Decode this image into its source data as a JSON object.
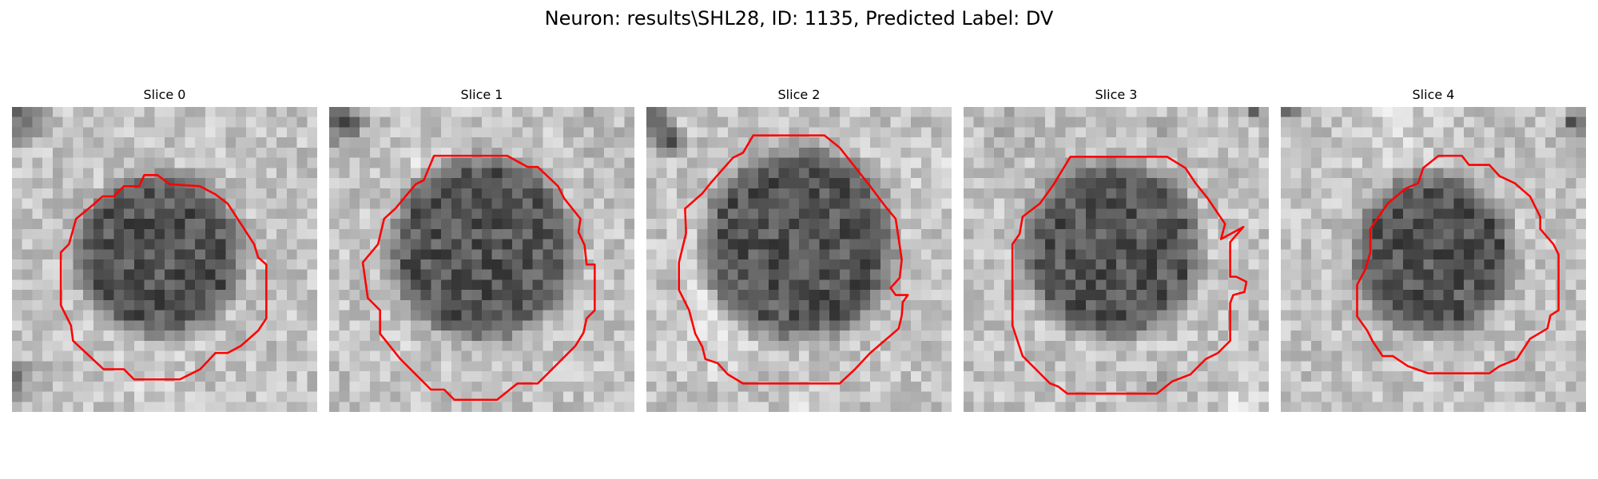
{
  "figure": {
    "title": "Neuron: results\\SHL28, ID: 1135, Predicted Label: DV",
    "contour_color": "#ff0000",
    "colormap": "grayscale"
  },
  "slices": [
    {
      "title": "Slice 0"
    },
    {
      "title": "Slice 1"
    },
    {
      "title": "Slice 2"
    },
    {
      "title": "Slice 3"
    },
    {
      "title": "Slice 4"
    }
  ]
}
